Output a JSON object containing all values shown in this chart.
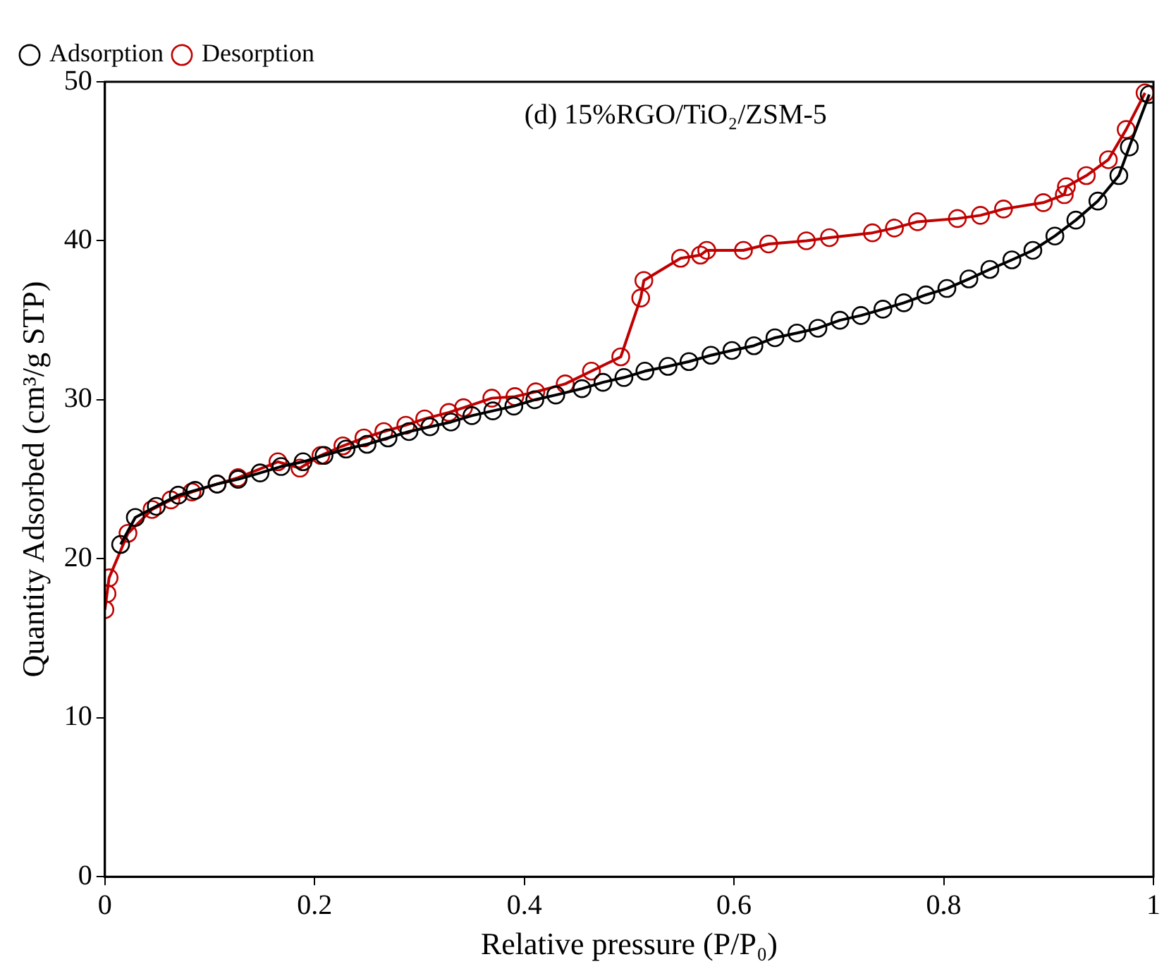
{
  "chart_data": {
    "type": "line",
    "xlabel": "Relative pressure (P/P₀)",
    "ylabel": "Quantity Adsorbed (cm³/g STP)",
    "annotations": [
      "(d) 15%RGO/TiO₂/ZSM-5"
    ],
    "xlim": [
      0,
      1
    ],
    "xticks": [
      0,
      0.2,
      0.4,
      0.6,
      0.8,
      1
    ],
    "ylim": [
      0,
      50
    ],
    "yticks": [
      0,
      10,
      20,
      30,
      40,
      50
    ],
    "grid": false,
    "legend": "top left",
    "marker": "circle",
    "line_style": "solid",
    "series": [
      {
        "name": "Adsorption",
        "color": "#000000",
        "x": [
          0.015,
          0.029,
          0.049,
          0.07,
          0.086,
          0.107,
          0.127,
          0.148,
          0.168,
          0.189,
          0.209,
          0.23,
          0.25,
          0.27,
          0.29,
          0.31,
          0.33,
          0.35,
          0.37,
          0.39,
          0.41,
          0.43,
          0.455,
          0.475,
          0.495,
          0.515,
          0.537,
          0.557,
          0.578,
          0.598,
          0.619,
          0.639,
          0.66,
          0.68,
          0.701,
          0.721,
          0.742,
          0.762,
          0.783,
          0.803,
          0.824,
          0.844,
          0.865,
          0.885,
          0.906,
          0.926,
          0.947,
          0.967,
          0.977,
          0.996
        ],
        "values": [
          20.9,
          22.6,
          23.3,
          24.0,
          24.3,
          24.7,
          25.0,
          25.4,
          25.8,
          26.1,
          26.5,
          26.9,
          27.2,
          27.6,
          28.0,
          28.3,
          28.6,
          29.0,
          29.3,
          29.6,
          30.0,
          30.3,
          30.7,
          31.1,
          31.4,
          31.8,
          32.1,
          32.4,
          32.8,
          33.1,
          33.4,
          33.9,
          34.2,
          34.5,
          35.0,
          35.3,
          35.7,
          36.1,
          36.6,
          37.0,
          37.6,
          38.2,
          38.8,
          39.4,
          40.3,
          41.3,
          42.5,
          44.1,
          45.9,
          49.2
        ]
      },
      {
        "name": "Desorption",
        "color": "#c00000",
        "x": [
          0.992,
          0.974,
          0.957,
          0.936,
          0.917,
          0.915,
          0.895,
          0.857,
          0.835,
          0.813,
          0.775,
          0.753,
          0.732,
          0.691,
          0.669,
          0.633,
          0.609,
          0.574,
          0.568,
          0.549,
          0.514,
          0.511,
          0.492,
          0.464,
          0.439,
          0.411,
          0.391,
          0.369,
          0.342,
          0.328,
          0.305,
          0.287,
          0.266,
          0.247,
          0.227,
          0.206,
          0.186,
          0.165,
          0.127,
          0.107,
          0.083,
          0.063,
          0.045,
          0.022,
          0.004,
          0.002,
          0.0
        ],
        "values": [
          49.3,
          47.0,
          45.1,
          44.1,
          43.4,
          42.9,
          42.4,
          42.0,
          41.6,
          41.4,
          41.2,
          40.8,
          40.5,
          40.2,
          40.0,
          39.8,
          39.4,
          39.4,
          39.1,
          38.9,
          37.5,
          36.4,
          32.7,
          31.8,
          31.0,
          30.5,
          30.2,
          30.1,
          29.5,
          29.2,
          28.8,
          28.4,
          28.0,
          27.6,
          27.1,
          26.5,
          25.7,
          26.1,
          25.1,
          24.7,
          24.2,
          23.7,
          23.1,
          21.6,
          18.8,
          17.8,
          16.8
        ]
      }
    ]
  }
}
